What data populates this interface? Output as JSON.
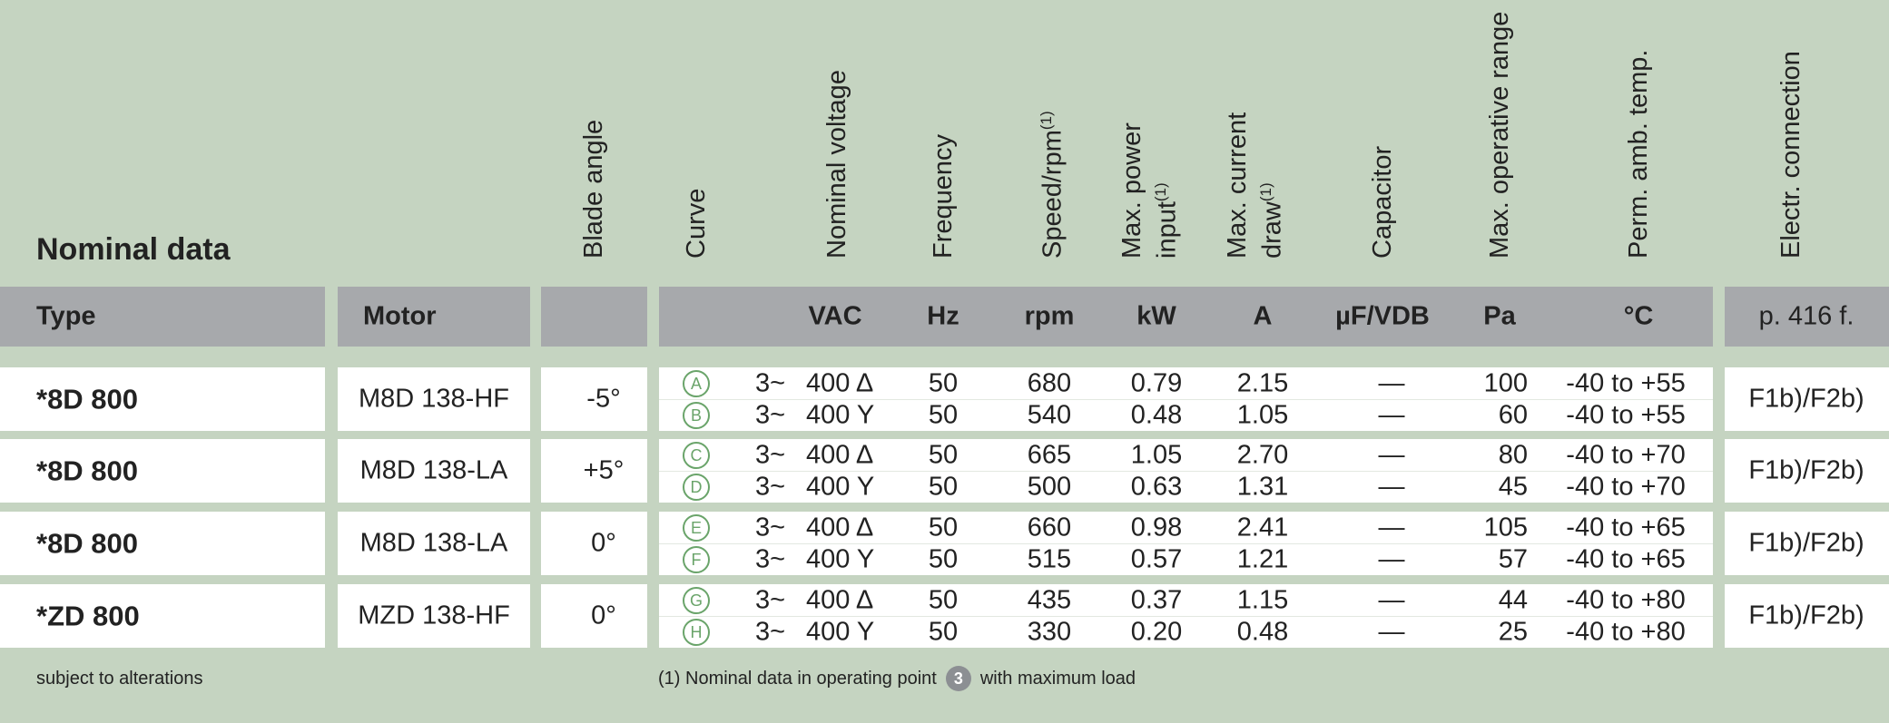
{
  "title": "Nominal data",
  "column_headers": [
    {
      "lines": [
        "Blade angle"
      ]
    },
    {
      "lines": [
        "Curve"
      ]
    },
    {
      "lines": [
        "Nominal voltage"
      ]
    },
    {
      "lines": [
        "Frequency"
      ]
    },
    {
      "lines": [
        "Speed/rpm"
      ],
      "note": "(1)"
    },
    {
      "lines": [
        "Max. power",
        "input"
      ],
      "note": "(1)"
    },
    {
      "lines": [
        "Max. current",
        "draw"
      ],
      "note": "(1)"
    },
    {
      "lines": [
        "Capacitor"
      ]
    },
    {
      "lines": [
        "Max. operative range"
      ]
    },
    {
      "lines": [
        "Perm. amb. temp."
      ]
    },
    {
      "lines": [
        "Electr. connection"
      ]
    }
  ],
  "units": [
    "Type",
    "Motor",
    "VAC",
    "Hz",
    "rpm",
    "kW",
    "A",
    "µF/VDB",
    "Pa",
    "°C",
    "p. 416 f."
  ],
  "rows": [
    {
      "type": "*8D 800",
      "motor": "M8D 138-HF",
      "blade_angle": "-5°",
      "connection": "F1b)/F2b)",
      "sub": [
        [
          "A",
          "3~",
          "400 Δ",
          "50",
          "680",
          "0.79",
          "2.15",
          "—",
          "100",
          "-40 to +55"
        ],
        [
          "B",
          "3~",
          "400 Y",
          "50",
          "540",
          "0.48",
          "1.05",
          "—",
          "60",
          "-40 to +55"
        ]
      ]
    },
    {
      "type": "*8D 800",
      "motor": "M8D 138-LA",
      "blade_angle": "+5°",
      "connection": "F1b)/F2b)",
      "sub": [
        [
          "C",
          "3~",
          "400 Δ",
          "50",
          "665",
          "1.05",
          "2.70",
          "—",
          "80",
          "-40 to +70"
        ],
        [
          "D",
          "3~",
          "400 Y",
          "50",
          "500",
          "0.63",
          "1.31",
          "—",
          "45",
          "-40 to +70"
        ]
      ]
    },
    {
      "type": "*8D 800",
      "motor": "M8D 138-LA",
      "blade_angle": "0°",
      "connection": "F1b)/F2b)",
      "sub": [
        [
          "E",
          "3~",
          "400 Δ",
          "50",
          "660",
          "0.98",
          "2.41",
          "—",
          "105",
          "-40 to +65"
        ],
        [
          "F",
          "3~",
          "400 Y",
          "50",
          "515",
          "0.57",
          "1.21",
          "—",
          "57",
          "-40 to +65"
        ]
      ]
    },
    {
      "type": "*ZD 800",
      "motor": "MZD 138-HF",
      "blade_angle": "0°",
      "connection": "F1b)/F2b)",
      "sub": [
        [
          "G",
          "3~",
          "400 Δ",
          "50",
          "435",
          "0.37",
          "1.15",
          "—",
          "44",
          "-40 to +80"
        ],
        [
          "H",
          "3~",
          "400 Y",
          "50",
          "330",
          "0.20",
          "0.48",
          "—",
          "25",
          "-40 to +80"
        ]
      ]
    }
  ],
  "footer": {
    "left": "subject to alterations",
    "note_before": "(1) Nominal data in operating point",
    "point": "3",
    "note_after": "with maximum load"
  }
}
